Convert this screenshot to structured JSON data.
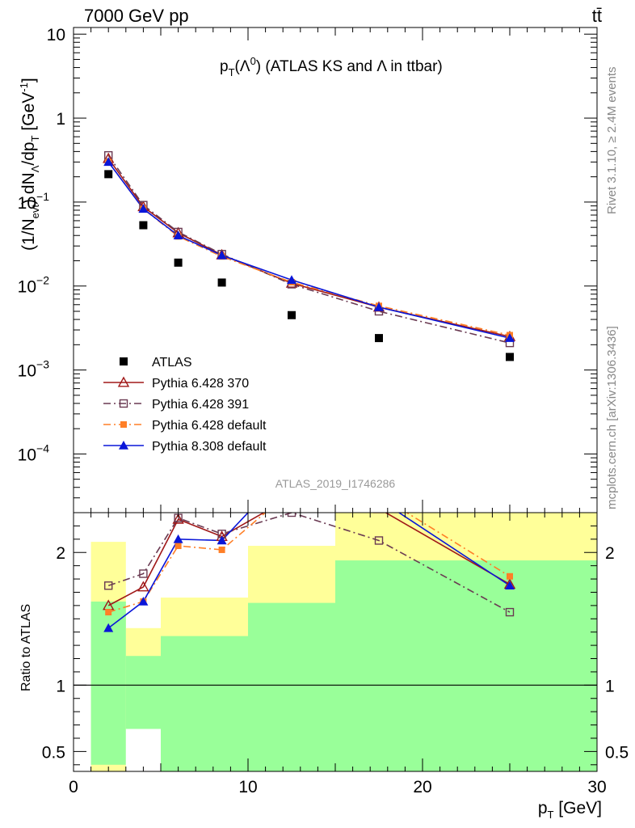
{
  "header": {
    "left": "7000 GeV pp",
    "right": "tt̄"
  },
  "side_labels": {
    "rivet": "Rivet 3.1.10, ≥ 2.4M events",
    "source": "mcplots.cern.ch [arXiv:1306.3436]"
  },
  "analysis_id": "ATLAS_2019_I1746286",
  "colors": {
    "band_inner": "#99ff99",
    "band_outer": "#ffff99",
    "atlas": "#000000",
    "py370": "#a01818",
    "py391": "#6a3a52",
    "pydef": "#ff7f27",
    "py8": "#0a16d8"
  },
  "chart_data": [
    {
      "type": "line",
      "title": "p_T(Λ^0) (ATLAS KS and Λ in ttbar)",
      "title_parts": {
        "p": "p",
        "T": "T",
        "lam": "(Λ",
        "zero": "0",
        "rest": ") (ATLAS KS and Λ in ttbar)"
      },
      "ylabel_parts": {
        "a": "(1/N",
        "evt": "evt",
        "b": ") dN",
        "lam": "Λ",
        "c": "/dp",
        "T": "T",
        "d": " [GeV",
        "e": "-1",
        "f": "]"
      },
      "yscale": "log",
      "ylim": [
        2e-05,
        12
      ],
      "xlim": [
        0,
        30
      ],
      "y_ticks": [
        {
          "v": 10,
          "label": "10"
        },
        {
          "v": 1,
          "label": "1"
        },
        {
          "v": 0.1,
          "label": "10",
          "sup": "−1"
        },
        {
          "v": 0.01,
          "label": "10",
          "sup": "−2"
        },
        {
          "v": 0.001,
          "label": "10",
          "sup": "−3"
        },
        {
          "v": 0.0001,
          "label": "10",
          "sup": "−4"
        }
      ],
      "x": [
        2,
        4,
        6,
        8.5,
        12.5,
        17.5,
        25
      ],
      "series": [
        {
          "name": "ATLAS",
          "key": "atlas",
          "marker": "square-filled",
          "line": "none",
          "values": [
            0.215,
            0.053,
            0.019,
            0.011,
            0.0045,
            0.0024,
            0.00143
          ]
        },
        {
          "name": "Pythia 6.428 370",
          "key": "py370",
          "marker": "triangle-open",
          "line": "solid",
          "values": [
            0.33,
            0.088,
            0.043,
            0.0235,
            0.0108,
            0.0056,
            0.0025
          ]
        },
        {
          "name": "Pythia 6.428 391",
          "key": "py391",
          "marker": "square-open",
          "line": "dashdot",
          "values": [
            0.36,
            0.092,
            0.044,
            0.024,
            0.0105,
            0.005,
            0.0021
          ]
        },
        {
          "name": "Pythia 6.428 default",
          "key": "pydef",
          "marker": "square-filled-small",
          "line": "dashdot",
          "values": [
            0.3,
            0.083,
            0.039,
            0.0225,
            0.0111,
            0.0058,
            0.0026
          ]
        },
        {
          "name": "Pythia 8.308 default",
          "key": "py8",
          "marker": "triangle-filled",
          "line": "solid",
          "values": [
            0.3,
            0.083,
            0.04,
            0.0232,
            0.0118,
            0.0056,
            0.0024
          ]
        }
      ]
    },
    {
      "type": "line",
      "ylabel": "Ratio to ATLAS",
      "xlabel_parts": {
        "p": "p",
        "T": "T",
        "unit": " [GeV]"
      },
      "ylim": [
        0.35,
        2.3
      ],
      "xlim": [
        0,
        30
      ],
      "x_ticks": [
        0,
        10,
        20,
        30
      ],
      "y_ticks": [
        0.5,
        1,
        2
      ],
      "reference_line": 1,
      "bands": [
        {
          "x": [
            1,
            3
          ],
          "inner": [
            0.4,
            1.63
          ],
          "outer": [
            0.35,
            2.08
          ]
        },
        {
          "x": [
            3,
            5
          ],
          "inner": [
            0.35,
            1.22
          ],
          "outer": [
            0.35,
            1.43
          ]
        },
        {
          "x": [
            5,
            10
          ],
          "inner": [
            0.35,
            1.37
          ],
          "outer": [
            0.35,
            1.66
          ]
        },
        {
          "x": [
            10,
            15
          ],
          "inner": [
            0.35,
            1.62
          ],
          "outer": [
            0.35,
            2.3
          ]
        },
        {
          "x": [
            15,
            30
          ],
          "inner": [
            0.35,
            1.94
          ],
          "outer": [
            0.35,
            2.3
          ]
        }
      ],
      "band_holes": [
        {
          "x": [
            3,
            5
          ],
          "y": [
            0.35,
            0.67
          ]
        },
        {
          "x": [
            5,
            10
          ],
          "y": [
            1.68,
            2.12
          ]
        },
        {
          "x": [
            10,
            15
          ],
          "y": [
            2.05,
            2.3
          ]
        }
      ],
      "x": [
        2,
        4,
        6,
        8.5,
        12.5,
        17.5,
        25
      ],
      "series": [
        {
          "key": "py370",
          "values": [
            1.6,
            1.74,
            2.25,
            2.12,
            2.42,
            2.33,
            1.76
          ]
        },
        {
          "key": "py391",
          "values": [
            1.75,
            1.84,
            2.26,
            2.14,
            2.3,
            2.09,
            1.55
          ]
        },
        {
          "key": "pydef",
          "values": [
            1.55,
            1.63,
            2.05,
            2.02,
            2.47,
            2.43,
            1.82
          ]
        },
        {
          "key": "py8",
          "values": [
            1.43,
            1.63,
            2.1,
            2.09,
            2.65,
            2.4,
            1.75
          ]
        }
      ]
    }
  ]
}
